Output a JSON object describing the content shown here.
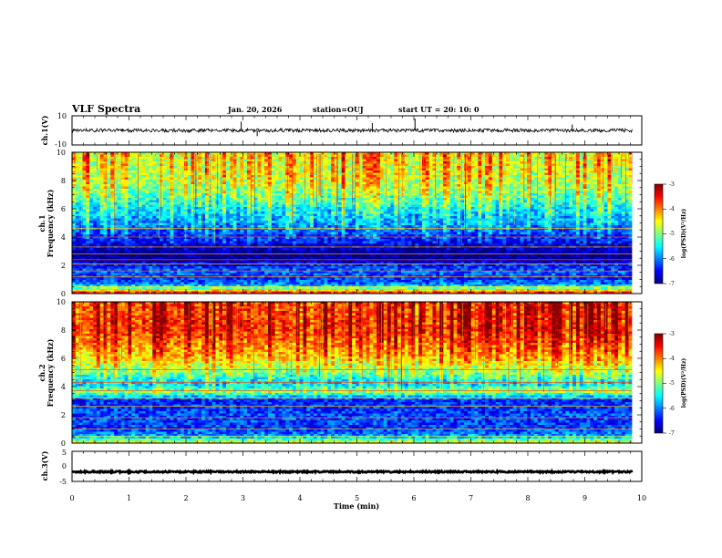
{
  "header": {
    "title": "VLF Spectra",
    "date": "Jan. 20, 2026",
    "station": "station=OUJ",
    "start_time": "start UT =  20: 10: 0"
  },
  "chart_data": [
    {
      "type": "line",
      "name": "ch1-waveform",
      "ylabel": "ch.1(V)",
      "ylim": [
        -10,
        10
      ],
      "yticks": [
        10,
        -10
      ],
      "xlim": [
        0,
        10
      ],
      "x_end": 9.83,
      "baseline": 0,
      "noise_amplitude": 1.2,
      "spikes": [
        {
          "x": 2.97,
          "y": 6
        },
        {
          "x": 3.25,
          "y": -4
        },
        {
          "x": 5.27,
          "y": 5
        },
        {
          "x": 6.02,
          "y": 8
        },
        {
          "x": 8.78,
          "y": 4
        }
      ]
    },
    {
      "type": "heatmap",
      "name": "ch1-spectrogram",
      "ylabel": "Frequency (kHz)",
      "channel": "ch.1",
      "ylim": [
        0,
        10
      ],
      "yticks": [
        0,
        2,
        4,
        6,
        8,
        10
      ],
      "xlim": [
        0,
        10
      ],
      "x_end": 9.83,
      "colorbar": {
        "label": "log(PSD)(V²/Hz)",
        "range": [
          -7,
          -3
        ],
        "ticks": [
          "-3",
          "-4",
          "-5",
          "-6",
          "-7"
        ]
      },
      "profile": [
        {
          "f": 0.0,
          "v": -3.4
        },
        {
          "f": 0.3,
          "v": -4.6
        },
        {
          "f": 0.6,
          "v": -5.9
        },
        {
          "f": 1.0,
          "v": -6.3
        },
        {
          "f": 1.6,
          "v": -6.1
        },
        {
          "f": 2.1,
          "v": -6.5
        },
        {
          "f": 2.4,
          "v": -7.0
        },
        {
          "f": 3.0,
          "v": -6.9
        },
        {
          "f": 3.4,
          "v": -6.6
        },
        {
          "f": 4.0,
          "v": -6.4
        },
        {
          "f": 5.0,
          "v": -5.9
        },
        {
          "f": 6.0,
          "v": -5.6
        },
        {
          "f": 7.0,
          "v": -5.1
        },
        {
          "f": 8.0,
          "v": -4.8
        },
        {
          "f": 10.0,
          "v": -4.6
        }
      ],
      "lines_khz": [
        0.3,
        0.5,
        1.2,
        1.6,
        2.1,
        2.4,
        2.8,
        3.3,
        4.0,
        4.6
      ],
      "burst_density": 0.45
    },
    {
      "type": "heatmap",
      "name": "ch2-spectrogram",
      "ylabel": "Frequency (kHz)",
      "channel": "ch.2",
      "ylim": [
        0,
        10
      ],
      "yticks": [
        0,
        2,
        4,
        6,
        8,
        10
      ],
      "xlim": [
        0,
        10
      ],
      "x_end": 9.83,
      "colorbar": {
        "label": "log(PSD)(V²/Hz)",
        "range": [
          -7,
          -3
        ],
        "ticks": [
          "-3",
          "-4",
          "-5",
          "-6",
          "-7"
        ]
      },
      "profile": [
        {
          "f": 0.0,
          "v": -4.4
        },
        {
          "f": 0.5,
          "v": -5.9
        },
        {
          "f": 1.0,
          "v": -6.3
        },
        {
          "f": 2.0,
          "v": -6.2
        },
        {
          "f": 3.0,
          "v": -6.4
        },
        {
          "f": 3.6,
          "v": -5.0
        },
        {
          "f": 4.2,
          "v": -5.8
        },
        {
          "f": 5.0,
          "v": -5.1
        },
        {
          "f": 6.0,
          "v": -4.5
        },
        {
          "f": 7.0,
          "v": -4.1
        },
        {
          "f": 8.0,
          "v": -3.8
        },
        {
          "f": 10.0,
          "v": -3.9
        }
      ],
      "lines_khz": [
        0.5,
        1.0,
        1.8,
        2.6,
        3.2,
        3.7,
        4.3,
        5.2
      ],
      "burst_density": 0.6
    },
    {
      "type": "line",
      "name": "ch3-waveform",
      "ylabel": "ch.3(V)",
      "ylim": [
        -5,
        5
      ],
      "yticks": [
        5,
        0,
        -5
      ],
      "xlim": [
        0,
        10
      ],
      "x_end": 9.83,
      "baseline": -1.8,
      "noise_amplitude": 0.25,
      "xlabel": "Time (min)",
      "xticks": [
        "0",
        "1",
        "2",
        "3",
        "4",
        "5",
        "6",
        "7",
        "8",
        "9",
        "10"
      ]
    }
  ]
}
